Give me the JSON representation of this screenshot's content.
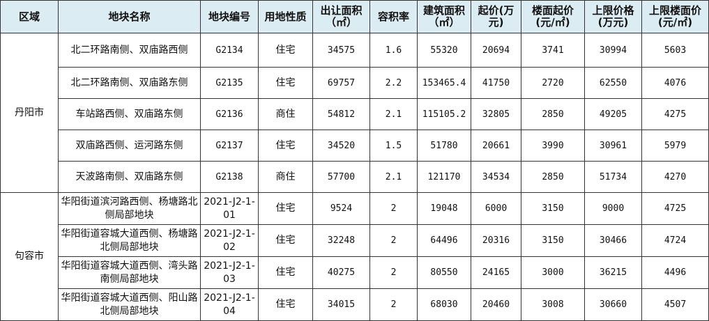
{
  "headers": [
    "区域",
    "地块名称",
    "地块编号",
    "用地性质",
    "出让面积（㎡）",
    "容积率",
    "建筑面积（㎡）",
    "起价(万元)",
    "楼面起价(元/㎡)",
    "上限价格(万元)",
    "上限楼面价(元/㎡)"
  ],
  "groups": [
    {
      "region": "丹阳市",
      "rows": [
        [
          "北二环路南侧、双庙路西侧",
          "G2134",
          "住宅",
          "34575",
          "1.6",
          "55320",
          "20694",
          "3741",
          "30994",
          "5603"
        ],
        [
          "北二环路南侧、双庙路东侧",
          "G2135",
          "住宅",
          "69757",
          "2.2",
          "153465.4",
          "41750",
          "2720",
          "62550",
          "4076"
        ],
        [
          "车站路西侧、双庙路东侧",
          "G2136",
          "商住",
          "54812",
          "2.1",
          "115105.2",
          "32805",
          "2850",
          "49205",
          "4275"
        ],
        [
          "双庙路西侧、运河路东侧",
          "G2137",
          "住宅",
          "34520",
          "1.5",
          "51780",
          "20661",
          "3990",
          "30961",
          "5979"
        ],
        [
          "天波路南侧、双庙路东侧",
          "G2138",
          "商住",
          "57700",
          "2.1",
          "121170",
          "34534",
          "2850",
          "51734",
          "4270"
        ]
      ]
    },
    {
      "region": "句容市",
      "rows": [
        [
          "华阳街道滨河路西侧、杨塘路北侧局部地块",
          "2021-J2-1-01",
          "住宅",
          "9524",
          "2",
          "19048",
          "6000",
          "3150",
          "9000",
          "4725"
        ],
        [
          "华阳街道容城大道西侧、杨塘路北侧局部地块",
          "2021-J2-1-02",
          "住宅",
          "32248",
          "2",
          "64496",
          "20316",
          "3150",
          "30466",
          "4724"
        ],
        [
          "华阳街道容城大道西侧、湾头路南侧局部地块",
          "2021-J2-1-03",
          "住宅",
          "40275",
          "2",
          "80550",
          "24165",
          "3000",
          "36215",
          "4496"
        ],
        [
          "华阳街道容城大道西侧、阳山路北侧局部地块",
          "2021-J2-1-04",
          "住宅",
          "34015",
          "2",
          "68030",
          "20460",
          "3008",
          "30660",
          "4507"
        ]
      ]
    }
  ],
  "colors": {
    "header_bg": "#dcecf3",
    "border": "#333333"
  }
}
